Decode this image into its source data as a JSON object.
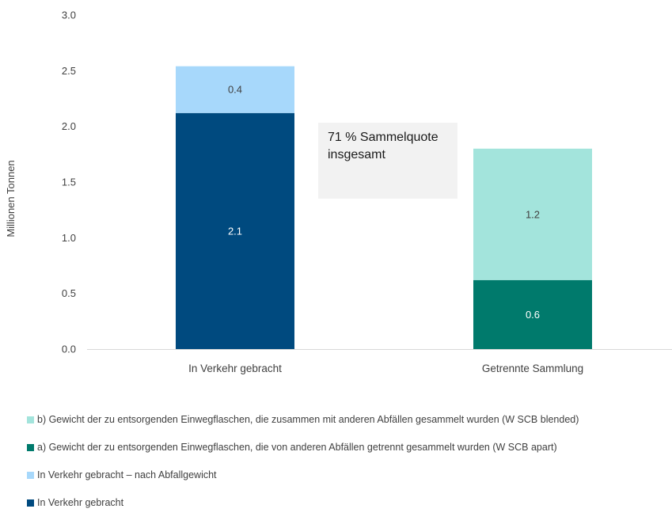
{
  "chart_data": {
    "type": "bar",
    "stacked": true,
    "categories": [
      "In Verkehr gebracht",
      "Getrennte Sammlung"
    ],
    "ylabel": "Millionen Tonnen",
    "ylim": [
      0,
      3.0
    ],
    "yticks": [
      "0.0",
      "0.5",
      "1.0",
      "1.5",
      "2.0",
      "2.5",
      "3.0"
    ],
    "grid": false,
    "legend_position": "bottom",
    "series": [
      {
        "name": "In Verkehr gebracht",
        "values": [
          2.12,
          0
        ],
        "labels": [
          "2.1",
          ""
        ],
        "color": "#004a7f",
        "label_color": "#ffffff"
      },
      {
        "name": "In Verkehr gebracht – nach Abfallgewicht",
        "values": [
          0.42,
          0
        ],
        "labels": [
          "0.4",
          ""
        ],
        "color": "#a7d8fb",
        "label_color": "#404040"
      },
      {
        "name": "a) Gewicht der zu entsorgenden Einwegflaschen, die von anderen Abfällen getrennt gesammelt wurden (W SCB apart)",
        "values": [
          0,
          0.62
        ],
        "labels": [
          "",
          "0.6"
        ],
        "color": "#007a6c",
        "label_color": "#ffffff"
      },
      {
        "name": "b) Gewicht der zu entsorgenden Einwegflaschen, die zusammen mit anderen Abfällen gesammelt wurden (W SCB blended)",
        "values": [
          0,
          1.18
        ],
        "labels": [
          "",
          "1.2"
        ],
        "color": "#a3e4dc",
        "label_color": "#404040"
      }
    ],
    "annotations": [
      "71 % Sammelquote insgesamt"
    ]
  },
  "annotation": {
    "line1": "71 % Sammelquote",
    "line2": "insgesamt"
  },
  "legend": [
    {
      "label": "b) Gewicht der zu entsorgenden Einwegflaschen, die zusammen mit anderen Abfällen gesammelt wurden (W SCB blended)",
      "color": "#a3e4dc"
    },
    {
      "label": "a) Gewicht der zu entsorgenden Einwegflaschen, die von anderen Abfällen getrennt gesammelt wurden (W SCB apart)",
      "color": "#007a6c"
    },
    {
      "label": "In Verkehr gebracht – nach Abfallgewicht",
      "color": "#a7d8fb"
    },
    {
      "label": "In Verkehr gebracht",
      "color": "#004a7f"
    }
  ]
}
